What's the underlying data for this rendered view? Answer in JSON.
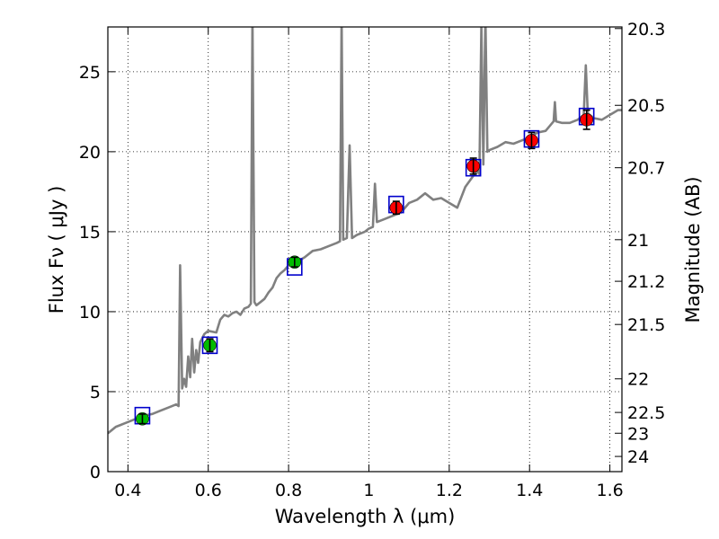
{
  "chart_data": {
    "type": "scatter",
    "title": "",
    "xlabel": "Wavelength  λ (μm)",
    "ylabel": "Flux  Fν  ( μJy )",
    "ylabel_right": "Magnitude (AB)",
    "xlim": [
      0.35,
      1.63
    ],
    "ylim": [
      0,
      27.8
    ],
    "grid": true,
    "x_ticks": [
      0.4,
      0.6,
      0.8,
      1.0,
      1.2,
      1.4,
      1.6
    ],
    "x_tick_labels": [
      "0.4",
      "0.6",
      "0.8",
      "1",
      "1.2",
      "1.4",
      "1.6"
    ],
    "y_ticks": [
      0,
      5,
      10,
      15,
      20,
      25
    ],
    "y_tick_labels": [
      "0",
      "5",
      "10",
      "15",
      "20",
      "25"
    ],
    "right_ticks": [
      {
        "flux": 27.7,
        "label": "20.3"
      },
      {
        "flux": 22.9,
        "label": "20.5"
      },
      {
        "flux": 19.0,
        "label": "20.7"
      },
      {
        "flux": 14.5,
        "label": "21"
      },
      {
        "flux": 11.9,
        "label": "21.2"
      },
      {
        "flux": 9.2,
        "label": "21.5"
      },
      {
        "flux": 5.8,
        "label": "22"
      },
      {
        "flux": 3.7,
        "label": "22.5"
      },
      {
        "flux": 2.4,
        "label": "23"
      },
      {
        "flux": 0.95,
        "label": "24"
      }
    ],
    "series": [
      {
        "name": "Model spectrum",
        "kind": "line",
        "color": "#808080",
        "points": [
          [
            0.35,
            2.4
          ],
          [
            0.36,
            2.6
          ],
          [
            0.37,
            2.8
          ],
          [
            0.38,
            2.9
          ],
          [
            0.39,
            3.0
          ],
          [
            0.4,
            3.1
          ],
          [
            0.42,
            3.3
          ],
          [
            0.44,
            3.5
          ],
          [
            0.46,
            3.6
          ],
          [
            0.48,
            3.8
          ],
          [
            0.5,
            4.0
          ],
          [
            0.52,
            4.2
          ],
          [
            0.526,
            4.1
          ],
          [
            0.53,
            12.9
          ],
          [
            0.535,
            5.2
          ],
          [
            0.54,
            5.8
          ],
          [
            0.545,
            5.3
          ],
          [
            0.55,
            7.2
          ],
          [
            0.555,
            5.9
          ],
          [
            0.56,
            8.3
          ],
          [
            0.565,
            6.2
          ],
          [
            0.57,
            7.6
          ],
          [
            0.575,
            6.8
          ],
          [
            0.58,
            8.1
          ],
          [
            0.59,
            8.6
          ],
          [
            0.6,
            8.8
          ],
          [
            0.62,
            8.7
          ],
          [
            0.63,
            9.5
          ],
          [
            0.64,
            9.8
          ],
          [
            0.65,
            9.7
          ],
          [
            0.66,
            9.9
          ],
          [
            0.67,
            10.0
          ],
          [
            0.68,
            9.8
          ],
          [
            0.69,
            10.2
          ],
          [
            0.7,
            10.3
          ],
          [
            0.706,
            10.5
          ],
          [
            0.71,
            28.5
          ],
          [
            0.715,
            10.6
          ],
          [
            0.72,
            10.4
          ],
          [
            0.73,
            10.6
          ],
          [
            0.74,
            10.8
          ],
          [
            0.75,
            11.2
          ],
          [
            0.76,
            11.5
          ],
          [
            0.77,
            12.1
          ],
          [
            0.78,
            12.4
          ],
          [
            0.79,
            12.6
          ],
          [
            0.8,
            12.9
          ],
          [
            0.82,
            13.1
          ],
          [
            0.84,
            13.4
          ],
          [
            0.86,
            13.8
          ],
          [
            0.88,
            13.9
          ],
          [
            0.9,
            14.1
          ],
          [
            0.92,
            14.3
          ],
          [
            0.928,
            14.4
          ],
          [
            0.932,
            28.5
          ],
          [
            0.936,
            14.5
          ],
          [
            0.945,
            14.6
          ],
          [
            0.952,
            20.4
          ],
          [
            0.958,
            14.6
          ],
          [
            0.97,
            14.8
          ],
          [
            0.99,
            15.0
          ],
          [
            1.0,
            15.2
          ],
          [
            1.01,
            15.3
          ],
          [
            1.015,
            18.0
          ],
          [
            1.02,
            15.6
          ],
          [
            1.04,
            15.8
          ],
          [
            1.06,
            16.0
          ],
          [
            1.08,
            16.2
          ],
          [
            1.1,
            16.8
          ],
          [
            1.12,
            17.0
          ],
          [
            1.14,
            17.4
          ],
          [
            1.16,
            17.0
          ],
          [
            1.18,
            17.1
          ],
          [
            1.2,
            16.8
          ],
          [
            1.22,
            16.5
          ],
          [
            1.24,
            17.8
          ],
          [
            1.26,
            18.5
          ],
          [
            1.27,
            18.8
          ],
          [
            1.275,
            18.6
          ],
          [
            1.28,
            27.9
          ],
          [
            1.285,
            19.2
          ],
          [
            1.29,
            28.5
          ],
          [
            1.295,
            20.0
          ],
          [
            1.3,
            20.1
          ],
          [
            1.32,
            20.3
          ],
          [
            1.34,
            20.6
          ],
          [
            1.36,
            20.5
          ],
          [
            1.38,
            20.7
          ],
          [
            1.4,
            20.9
          ],
          [
            1.42,
            21.2
          ],
          [
            1.44,
            21.3
          ],
          [
            1.46,
            21.9
          ],
          [
            1.463,
            23.1
          ],
          [
            1.466,
            21.9
          ],
          [
            1.48,
            21.8
          ],
          [
            1.5,
            21.8
          ],
          [
            1.52,
            22.0
          ],
          [
            1.535,
            22.3
          ],
          [
            1.54,
            25.4
          ],
          [
            1.545,
            22.4
          ],
          [
            1.56,
            22.1
          ],
          [
            1.58,
            22.0
          ],
          [
            1.6,
            22.3
          ],
          [
            1.62,
            22.6
          ],
          [
            1.63,
            22.6
          ]
        ]
      },
      {
        "name": "Model photometry",
        "kind": "square",
        "color": "#0000cc",
        "x": [
          0.436,
          0.604,
          0.815,
          1.068,
          1.26,
          1.405,
          1.542
        ],
        "y": [
          3.5,
          7.9,
          12.8,
          16.7,
          19.0,
          20.8,
          22.2
        ]
      },
      {
        "name": "Observed (green)",
        "kind": "circle",
        "color": "#00bb00",
        "x": [
          0.436,
          0.604,
          0.815
        ],
        "y": [
          3.3,
          7.9,
          13.1
        ],
        "yerr": [
          0.3,
          0.4,
          0.3
        ]
      },
      {
        "name": "Observed (red)",
        "kind": "circle",
        "color": "#ff0000",
        "x": [
          1.068,
          1.26,
          1.405,
          1.542
        ],
        "y": [
          16.5,
          19.1,
          20.7,
          22.0
        ],
        "yerr": [
          0.4,
          0.5,
          0.5,
          0.6
        ]
      }
    ]
  }
}
